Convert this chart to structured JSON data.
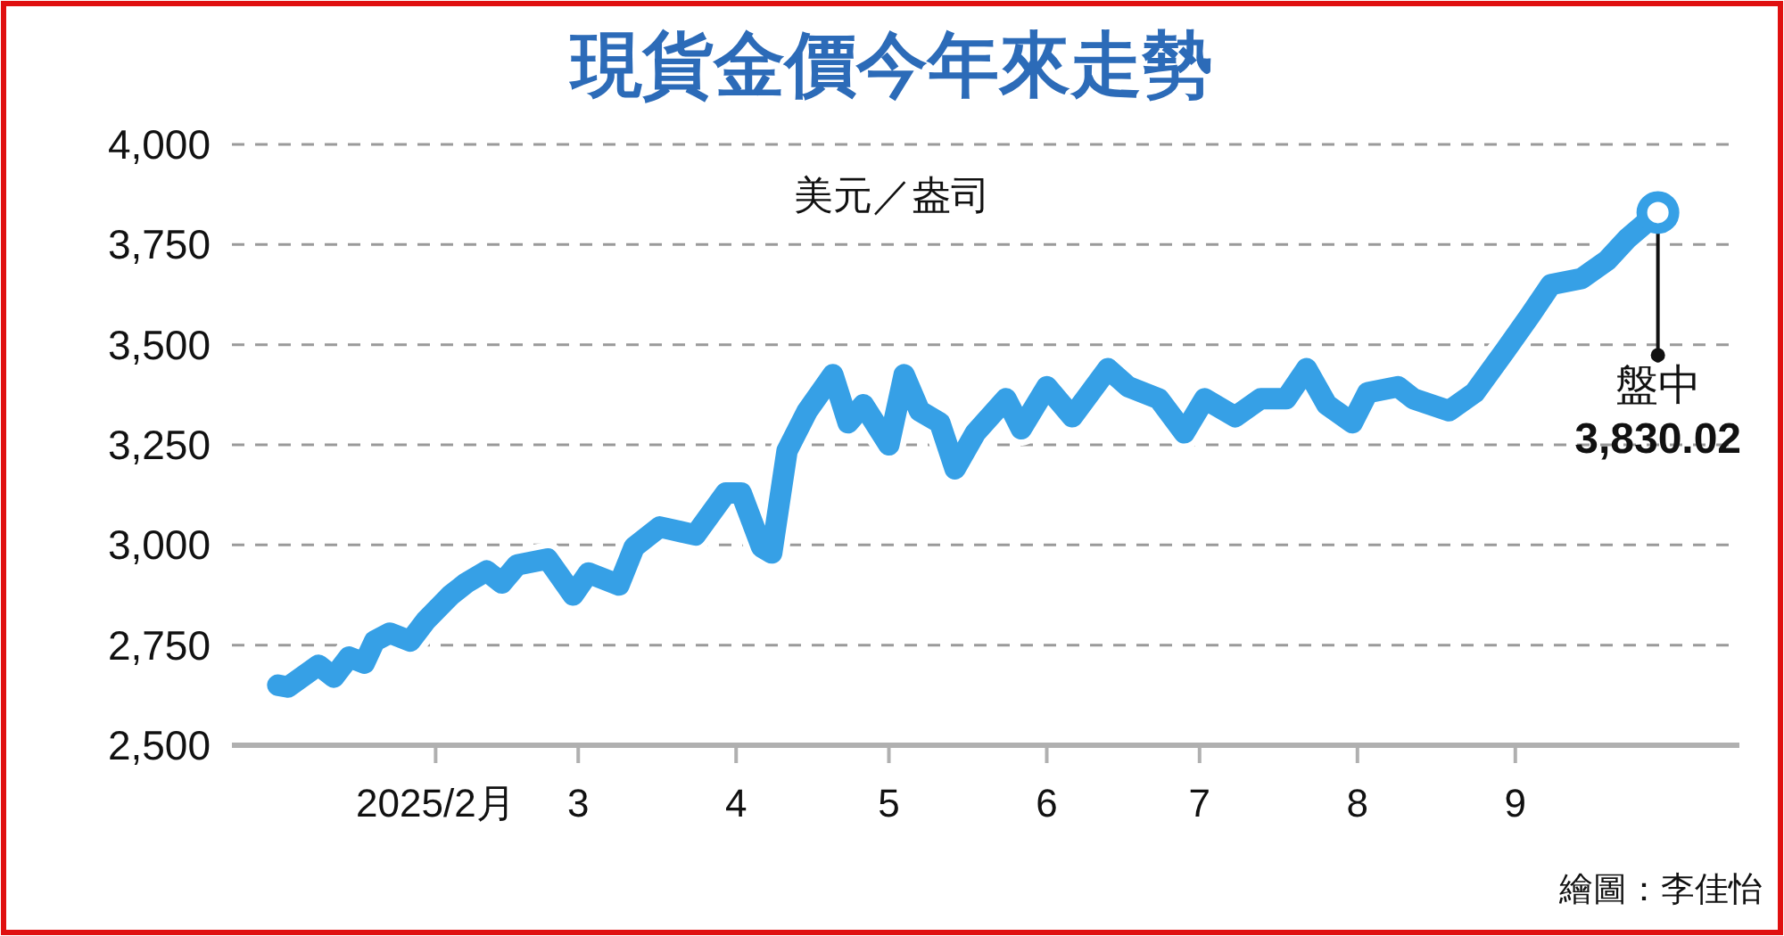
{
  "chart_data": {
    "type": "line",
    "title": "現貨金價今年來走勢",
    "ylabel": "美元／盎司",
    "x": [
      "2025-01-01",
      "2025-01-03",
      "2025-01-09",
      "2025-01-12",
      "2025-01-15",
      "2025-01-18",
      "2025-01-20",
      "2025-01-23",
      "2025-01-27",
      "2025-01-30",
      "2025-02-04",
      "2025-02-07",
      "2025-02-11",
      "2025-02-14",
      "2025-02-17",
      "2025-02-23",
      "2025-02-28",
      "2025-03-03",
      "2025-03-09",
      "2025-03-12",
      "2025-03-17",
      "2025-03-24",
      "2025-03-30",
      "2025-04-02",
      "2025-04-06",
      "2025-04-08",
      "2025-04-11",
      "2025-04-15",
      "2025-04-20",
      "2025-04-23",
      "2025-04-26",
      "2025-05-01",
      "2025-05-04",
      "2025-05-07",
      "2025-05-11",
      "2025-05-14",
      "2025-05-18",
      "2025-05-24",
      "2025-05-27",
      "2025-06-01",
      "2025-06-06",
      "2025-06-13",
      "2025-06-17",
      "2025-06-23",
      "2025-06-28",
      "2025-07-02",
      "2025-07-08",
      "2025-07-13",
      "2025-07-18",
      "2025-07-22",
      "2025-07-26",
      "2025-07-31",
      "2025-08-03",
      "2025-08-09",
      "2025-08-12",
      "2025-08-19",
      "2025-08-24",
      "2025-08-30",
      "2025-09-04",
      "2025-09-08",
      "2025-09-14",
      "2025-09-19",
      "2025-09-23",
      "2025-09-29"
    ],
    "series": [
      {
        "color": "#36a0e6",
        "values": [
          2650,
          2645,
          2700,
          2670,
          2720,
          2705,
          2760,
          2780,
          2760,
          2810,
          2875,
          2905,
          2935,
          2905,
          2950,
          2965,
          2875,
          2930,
          2900,
          2995,
          3045,
          3025,
          3130,
          3130,
          2995,
          2980,
          3235,
          3335,
          3425,
          3305,
          3350,
          3250,
          3425,
          3335,
          3305,
          3190,
          3280,
          3365,
          3290,
          3395,
          3320,
          3440,
          3395,
          3365,
          3280,
          3365,
          3320,
          3365,
          3365,
          3440,
          3350,
          3305,
          3380,
          3395,
          3365,
          3335,
          3380,
          3485,
          3575,
          3650,
          3665,
          3710,
          3765,
          3830.02
        ]
      }
    ],
    "xlim": [
      "2024-12-23",
      "2025-10-15"
    ],
    "xticks": [
      {
        "value": "2025-02-01",
        "label": "2025/2月"
      },
      {
        "value": "2025-03-01",
        "label": "3"
      },
      {
        "value": "2025-04-01",
        "label": "4"
      },
      {
        "value": "2025-05-01",
        "label": "5"
      },
      {
        "value": "2025-06-01",
        "label": "6"
      },
      {
        "value": "2025-07-01",
        "label": "7"
      },
      {
        "value": "2025-08-01",
        "label": "8"
      },
      {
        "value": "2025-09-01",
        "label": "9"
      }
    ],
    "ylim": [
      2500,
      4000
    ],
    "yticks": [
      {
        "value": 2500,
        "label": "2,500"
      },
      {
        "value": 2750,
        "label": "2,750"
      },
      {
        "value": 3000,
        "label": "3,000"
      },
      {
        "value": 3250,
        "label": "3,250"
      },
      {
        "value": 3500,
        "label": "3,500"
      },
      {
        "value": 3750,
        "label": "3,750"
      },
      {
        "value": 4000,
        "label": "4,000"
      }
    ],
    "grid": "y",
    "annotations": [
      {
        "text": "盤中 3,830.02",
        "x": "2025-09-29",
        "y": 3830.02
      },
      "繪圖：李佳怡"
    ]
  }
}
